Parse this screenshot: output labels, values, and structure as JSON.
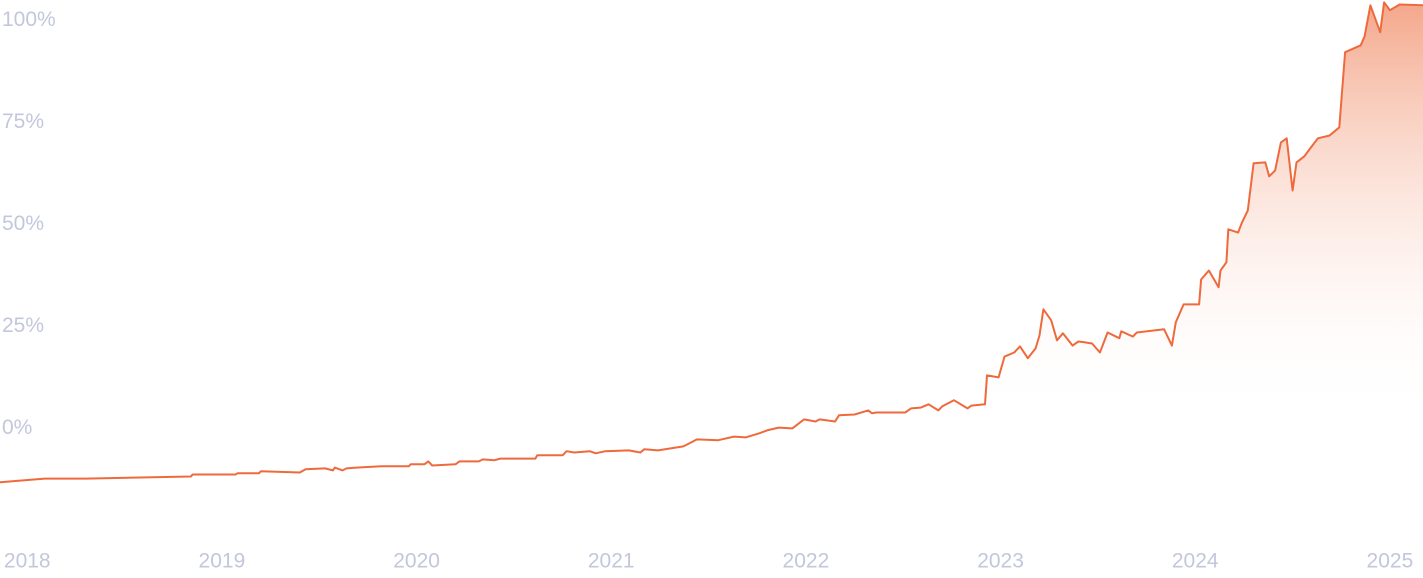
{
  "chart_data": {
    "type": "area",
    "x": [
      2017.86,
      2018.09,
      2018.3,
      2018.84,
      2018.85,
      2019.07,
      2019.08,
      2019.19,
      2019.2,
      2019.4,
      2019.43,
      2019.53,
      2019.57,
      2019.58,
      2019.62,
      2019.64,
      2019.69,
      2019.82,
      2019.96,
      2019.97,
      2020.04,
      2020.06,
      2020.08,
      2020.2,
      2020.22,
      2020.32,
      2020.34,
      2020.4,
      2020.43,
      2020.61,
      2020.62,
      2020.75,
      2020.77,
      2020.81,
      2020.89,
      2020.92,
      2020.97,
      2021.09,
      2021.15,
      2021.17,
      2021.24,
      2021.37,
      2021.4,
      2021.44,
      2021.55,
      2021.63,
      2021.69,
      2021.76,
      2021.8,
      2021.86,
      2021.93,
      2021.99,
      2022.05,
      2022.07,
      2022.15,
      2022.17,
      2022.25,
      2022.32,
      2022.34,
      2022.36,
      2022.51,
      2022.54,
      2022.59,
      2022.63,
      2022.68,
      2022.7,
      2022.76,
      2022.83,
      2022.85,
      2022.92,
      2022.93,
      2022.99,
      2023.02,
      2023.07,
      2023.1,
      2023.14,
      2023.18,
      2023.2,
      2023.22,
      2023.26,
      2023.29,
      2023.32,
      2023.37,
      2023.4,
      2023.43,
      2023.47,
      2023.51,
      2023.55,
      2023.61,
      2023.62,
      2023.68,
      2023.7,
      2023.84,
      2023.88,
      2023.9,
      2023.94,
      2024.02,
      2024.03,
      2024.07,
      2024.12,
      2024.13,
      2024.16,
      2024.17,
      2024.22,
      2024.24,
      2024.27,
      2024.3,
      2024.36,
      2024.38,
      2024.41,
      2024.44,
      2024.47,
      2024.5,
      2024.52,
      2024.56,
      2024.59,
      2024.63,
      2024.69,
      2024.74,
      2024.77,
      2024.85,
      2024.87,
      2024.9,
      2024.95,
      2024.97,
      2025.0,
      2025.05,
      2025.17
    ],
    "values": [
      -13.2,
      -12.3,
      -12.3,
      -11.8,
      -11.3,
      -11.3,
      -11.0,
      -11.0,
      -10.5,
      -10.8,
      -10.0,
      -9.8,
      -10.3,
      -9.6,
      -10.3,
      -9.8,
      -9.6,
      -9.3,
      -9.3,
      -8.8,
      -8.8,
      -8.1,
      -9.1,
      -8.8,
      -8.1,
      -8.1,
      -7.6,
      -7.8,
      -7.4,
      -7.4,
      -6.6,
      -6.6,
      -5.6,
      -5.9,
      -5.6,
      -6.1,
      -5.6,
      -5.4,
      -5.9,
      -5.1,
      -5.4,
      -4.4,
      -3.7,
      -2.7,
      -2.9,
      -2.0,
      -2.2,
      -1.2,
      -0.5,
      0.2,
      0,
      2.2,
      1.7,
      2.2,
      1.7,
      3.2,
      3.4,
      4.4,
      3.7,
      3.9,
      3.9,
      4.9,
      5.1,
      5.9,
      4.4,
      5.4,
      6.9,
      4.9,
      5.6,
      5.9,
      13.0,
      12.5,
      17.6,
      18.6,
      20.1,
      17.2,
      19.6,
      22.8,
      29.2,
      26.5,
      21.6,
      23.3,
      20.3,
      21.3,
      21.1,
      20.8,
      18.6,
      23.5,
      22.1,
      23.8,
      22.5,
      23.5,
      24.3,
      20.3,
      26.0,
      30.4,
      30.4,
      36.5,
      38.7,
      34.6,
      38.7,
      40.7,
      48.8,
      48.0,
      50.5,
      53.4,
      65.0,
      65.2,
      61.8,
      63.2,
      70.1,
      71.1,
      58.3,
      65.2,
      66.7,
      68.6,
      71.1,
      71.8,
      73.8,
      92.2,
      93.9,
      96.1,
      103.7,
      97.1,
      104.4,
      102.5,
      103.9,
      103.7
    ],
    "color": "#ee6a3c",
    "xlim": [
      2017.86,
      2025.17
    ],
    "ylim": [
      -30,
      105
    ],
    "xticks": [
      2018,
      2019,
      2020,
      2021,
      2022,
      2023,
      2024,
      2025
    ],
    "yticks": [
      {
        "value": 0,
        "label": "0%"
      },
      {
        "value": 25,
        "label": "25%"
      },
      {
        "value": 50,
        "label": "50%"
      },
      {
        "value": 75,
        "label": "75%"
      },
      {
        "value": 100,
        "label": "100%"
      }
    ],
    "grid": false
  }
}
